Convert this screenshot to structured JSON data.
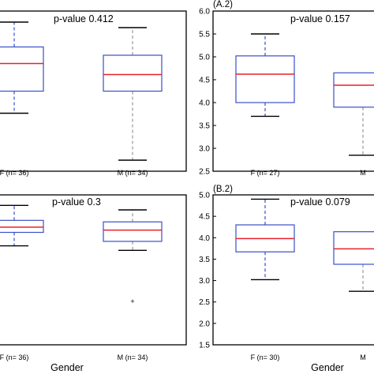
{
  "chart_data": [
    {
      "type": "box",
      "panel_label": "",
      "annotation": "p-value 0.412",
      "xlabel": "",
      "categories": [
        "F (n= 36)",
        "M (n= 34)"
      ],
      "boxes": [
        {
          "category": "F (n= 36)",
          "whisker_low": 12.0,
          "q1": 28.0,
          "median": 48.0,
          "q3": 60.0,
          "whisker_high": 78.0,
          "box_color": "#3a4fc7",
          "whisker_style": "dashed",
          "whisker_color": "#3a4fc7",
          "outliers": []
        },
        {
          "category": "M (n= 34)",
          "whisker_low": -22.0,
          "q1": 28.0,
          "median": 40.0,
          "q3": 54.0,
          "whisker_high": 74.0,
          "box_color": "#3a4fc7",
          "whisker_style": "dashed",
          "whisker_color": "#9a9a9a",
          "outliers": []
        }
      ],
      "median_color": "#e8202a",
      "ylim": [
        -30,
        86
      ],
      "yticks": [],
      "ytick_labels": []
    },
    {
      "type": "box",
      "panel_label": "(A.2)",
      "annotation": "p-value 0.157",
      "xlabel": "",
      "categories": [
        "F (n= 27)",
        "M"
      ],
      "boxes": [
        {
          "category": "F (n= 27)",
          "whisker_low": 3.7,
          "q1": 4.0,
          "median": 4.62,
          "q3": 5.02,
          "whisker_high": 5.5,
          "box_color": "#3a4fc7",
          "whisker_style": "dashed",
          "whisker_color": "#3a4fc7",
          "outliers": []
        },
        {
          "category": "M",
          "whisker_low": 2.85,
          "q1": 3.9,
          "median": 4.38,
          "q3": 4.65,
          "whisker_high": null,
          "box_color": "#3a4fc7",
          "whisker_style": "dashed",
          "whisker_color": "#9a9a9a",
          "outliers": []
        }
      ],
      "median_color": "#e8202a",
      "ylim": [
        2.5,
        6.0
      ],
      "yticks": [
        2.5,
        3.0,
        3.5,
        4.0,
        4.5,
        5.0,
        5.5,
        6.0
      ],
      "ytick_labels": [
        "2.5",
        "3.0",
        "3.5",
        "4.0",
        "4.5",
        "5.0",
        "5.5",
        "6.0"
      ]
    },
    {
      "type": "box",
      "panel_label": "",
      "annotation": "p-value 0.3",
      "xlabel": "Gender",
      "categories": [
        "F (n= 36)",
        "M (n= 34)"
      ],
      "boxes": [
        {
          "category": "F (n= 36)",
          "whisker_low": 2.6,
          "q1": 3.5,
          "median": 3.85,
          "q3": 4.3,
          "whisker_high": 5.3,
          "box_color": "#3a4fc7",
          "whisker_style": "dashed",
          "whisker_color": "#3a4fc7",
          "outliers": []
        },
        {
          "category": "M (n= 34)",
          "whisker_low": 2.3,
          "q1": 2.9,
          "median": 3.65,
          "q3": 4.2,
          "whisker_high": 5.0,
          "box_color": "#3a4fc7",
          "whisker_style": "dashed",
          "whisker_color": "#9a9a9a",
          "outliers": [
            -1.1
          ]
        }
      ],
      "median_color": "#e8202a",
      "ylim": [
        -4.0,
        6.0
      ],
      "yticks": [],
      "ytick_labels": []
    },
    {
      "type": "box",
      "panel_label": "(B.2)",
      "annotation": "p-value 0.079",
      "xlabel": "Gender",
      "categories": [
        "F (n= 30)",
        "M"
      ],
      "boxes": [
        {
          "category": "F (n= 30)",
          "whisker_low": 3.02,
          "q1": 3.67,
          "median": 3.98,
          "q3": 4.3,
          "whisker_high": 4.9,
          "box_color": "#3a4fc7",
          "whisker_style": "dashed",
          "whisker_color": "#3a4fc7",
          "outliers": []
        },
        {
          "category": "M",
          "whisker_low": 2.75,
          "q1": 3.38,
          "median": 3.74,
          "q3": 4.14,
          "whisker_high": null,
          "box_color": "#3a4fc7",
          "whisker_style": "dashed",
          "whisker_color": "#9a9a9a",
          "outliers": []
        }
      ],
      "median_color": "#e8202a",
      "ylim": [
        1.5,
        5.0
      ],
      "yticks": [
        1.5,
        2.0,
        2.5,
        3.0,
        3.5,
        4.0,
        4.5,
        5.0
      ],
      "ytick_labels": [
        "1.5",
        "2.0",
        "2.5",
        "3.0",
        "3.5",
        "4.0",
        "4.5",
        "5.0"
      ]
    }
  ]
}
